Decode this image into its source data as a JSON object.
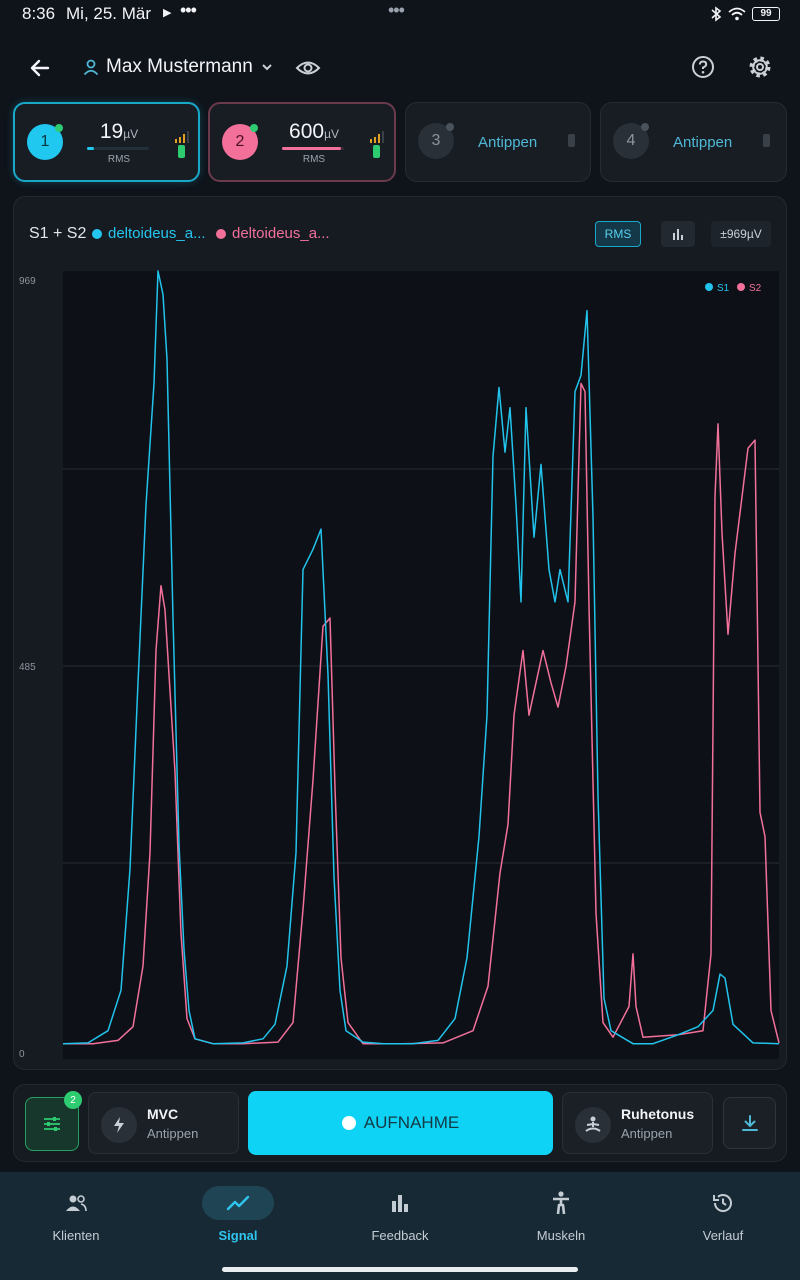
{
  "status_bar": {
    "time": "8:36",
    "date": "Mi, 25. Mär",
    "battery": "99"
  },
  "header": {
    "user_name": "Max Mustermann",
    "icons": [
      "back-arrow-icon",
      "person-icon",
      "chevron-down-icon",
      "eye-icon",
      "help-icon",
      "settings-icon"
    ]
  },
  "channels": [
    {
      "number": "1",
      "value": "19",
      "unit": "µV",
      "mode": "RMS",
      "color": "#20c7ef",
      "status": "#2ecc71",
      "level": 0.12
    },
    {
      "number": "2",
      "value": "600",
      "unit": "µV",
      "mode": "RMS",
      "color": "#f2709a",
      "status": "#2ecc71",
      "level": 0.95
    },
    {
      "number": "3",
      "action": "Antippen"
    },
    {
      "number": "4",
      "action": "Antippen"
    }
  ],
  "chart": {
    "title": "S1 + S2",
    "legend": [
      "deltoideus_a...",
      "deltoideus_a..."
    ],
    "mode_button": "RMS",
    "range_button": "±969µV"
  },
  "chart_data": {
    "type": "line",
    "ylim": [
      0,
      969
    ],
    "y_ticks": [
      "969",
      "485",
      "0"
    ],
    "grid": true,
    "legend_position": "top-right",
    "series": [
      {
        "name": "S1",
        "color": "#22c3ec",
        "points": [
          [
            0,
            14
          ],
          [
            25,
            15
          ],
          [
            45,
            30
          ],
          [
            58,
            80
          ],
          [
            67,
            230
          ],
          [
            75,
            460
          ],
          [
            83,
            680
          ],
          [
            91,
            830
          ],
          [
            95,
            985
          ],
          [
            100,
            940
          ],
          [
            104,
            860
          ],
          [
            110,
            540
          ],
          [
            116,
            260
          ],
          [
            121,
            130
          ],
          [
            126,
            55
          ],
          [
            132,
            20
          ],
          [
            150,
            14
          ],
          [
            180,
            15
          ],
          [
            200,
            20
          ],
          [
            212,
            38
          ],
          [
            224,
            110
          ],
          [
            233,
            250
          ],
          [
            240,
            600
          ],
          [
            250,
            625
          ],
          [
            258,
            650
          ],
          [
            265,
            470
          ],
          [
            271,
            220
          ],
          [
            277,
            80
          ],
          [
            283,
            30
          ],
          [
            300,
            16
          ],
          [
            320,
            14
          ],
          [
            350,
            14
          ],
          [
            375,
            18
          ],
          [
            392,
            45
          ],
          [
            404,
            120
          ],
          [
            416,
            270
          ],
          [
            424,
            420
          ],
          [
            430,
            740
          ],
          [
            436,
            825
          ],
          [
            442,
            745
          ],
          [
            447,
            800
          ],
          [
            453,
            680
          ],
          [
            458,
            560
          ],
          [
            463,
            800
          ],
          [
            471,
            640
          ],
          [
            478,
            730
          ],
          [
            486,
            600
          ],
          [
            492,
            560
          ],
          [
            497,
            600
          ],
          [
            505,
            560
          ],
          [
            512,
            820
          ],
          [
            518,
            840
          ],
          [
            524,
            920
          ],
          [
            530,
            665
          ],
          [
            535,
            320
          ],
          [
            541,
            70
          ],
          [
            548,
            30
          ],
          [
            570,
            14
          ],
          [
            590,
            14
          ],
          [
            615,
            25
          ],
          [
            635,
            35
          ],
          [
            650,
            55
          ],
          [
            657,
            100
          ],
          [
            662,
            95
          ],
          [
            670,
            38
          ],
          [
            690,
            15
          ],
          [
            716,
            14
          ]
        ]
      },
      {
        "name": "S2",
        "color": "#f2709a",
        "points": [
          [
            0,
            14
          ],
          [
            30,
            14
          ],
          [
            55,
            18
          ],
          [
            70,
            35
          ],
          [
            80,
            110
          ],
          [
            87,
            250
          ],
          [
            93,
            500
          ],
          [
            98,
            580
          ],
          [
            102,
            550
          ],
          [
            106,
            470
          ],
          [
            112,
            350
          ],
          [
            118,
            150
          ],
          [
            124,
            45
          ],
          [
            132,
            20
          ],
          [
            150,
            14
          ],
          [
            180,
            14
          ],
          [
            215,
            16
          ],
          [
            230,
            40
          ],
          [
            240,
            180
          ],
          [
            250,
            340
          ],
          [
            260,
            530
          ],
          [
            267,
            540
          ],
          [
            272,
            330
          ],
          [
            278,
            120
          ],
          [
            285,
            40
          ],
          [
            300,
            14
          ],
          [
            340,
            14
          ],
          [
            380,
            15
          ],
          [
            410,
            30
          ],
          [
            425,
            85
          ],
          [
            437,
            225
          ],
          [
            445,
            285
          ],
          [
            451,
            420
          ],
          [
            460,
            500
          ],
          [
            466,
            420
          ],
          [
            473,
            460
          ],
          [
            480,
            500
          ],
          [
            488,
            460
          ],
          [
            495,
            430
          ],
          [
            503,
            480
          ],
          [
            512,
            560
          ],
          [
            518,
            830
          ],
          [
            522,
            820
          ],
          [
            526,
            555
          ],
          [
            533,
            175
          ],
          [
            540,
            40
          ],
          [
            550,
            22
          ],
          [
            566,
            60
          ],
          [
            570,
            125
          ],
          [
            573,
            60
          ],
          [
            580,
            22
          ],
          [
            615,
            25
          ],
          [
            640,
            30
          ],
          [
            648,
            125
          ],
          [
            652,
            690
          ],
          [
            655,
            780
          ],
          [
            659,
            645
          ],
          [
            665,
            520
          ],
          [
            672,
            620
          ],
          [
            685,
            750
          ],
          [
            692,
            760
          ],
          [
            697,
            300
          ],
          [
            702,
            270
          ],
          [
            708,
            55
          ],
          [
            716,
            15
          ]
        ]
      }
    ]
  },
  "action_bar": {
    "filter_badge": "2",
    "mvc_title": "MVC",
    "mvc_sub": "Antippen",
    "record_label": "AUFNAHME",
    "rest_title": "Ruhetonus",
    "rest_sub": "Antippen"
  },
  "nav": {
    "items": [
      {
        "label": "Klienten",
        "icon": "people-icon"
      },
      {
        "label": "Signal",
        "icon": "trend-line-icon"
      },
      {
        "label": "Feedback",
        "icon": "bar-chart-icon"
      },
      {
        "label": "Muskeln",
        "icon": "person-standing-icon"
      },
      {
        "label": "Verlauf",
        "icon": "history-icon"
      }
    ],
    "active": "Signal"
  }
}
